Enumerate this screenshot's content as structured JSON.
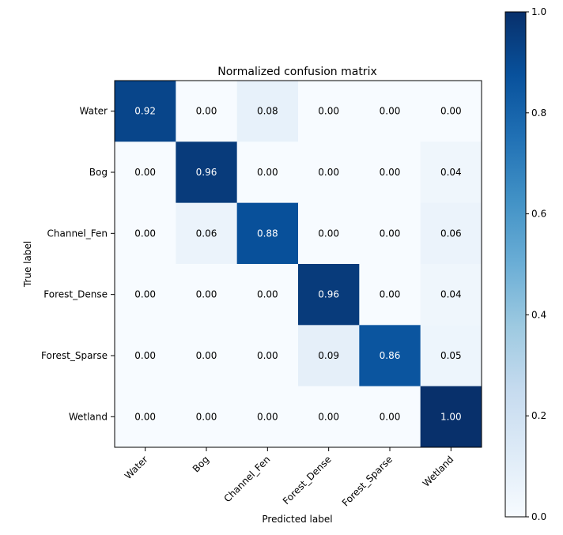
{
  "chart_data": {
    "type": "heatmap",
    "title": "Normalized confusion matrix",
    "xlabel": "Predicted label",
    "ylabel": "True label",
    "x_categories": [
      "Water",
      "Bog",
      "Channel_Fen",
      "Forest_Dense",
      "Forest_Sparse",
      "Wetland"
    ],
    "y_categories": [
      "Water",
      "Bog",
      "Channel_Fen",
      "Forest_Dense",
      "Forest_Sparse",
      "Wetland"
    ],
    "values": [
      [
        0.92,
        0.0,
        0.08,
        0.0,
        0.0,
        0.0
      ],
      [
        0.0,
        0.96,
        0.0,
        0.0,
        0.0,
        0.04
      ],
      [
        0.0,
        0.06,
        0.88,
        0.0,
        0.0,
        0.06
      ],
      [
        0.0,
        0.0,
        0.0,
        0.96,
        0.0,
        0.04
      ],
      [
        0.0,
        0.0,
        0.0,
        0.09,
        0.86,
        0.05
      ],
      [
        0.0,
        0.0,
        0.0,
        0.0,
        0.0,
        1.0
      ]
    ],
    "value_format": "0.00",
    "colormap": "Blues",
    "colorbar": {
      "range": [
        0.0,
        1.0
      ],
      "ticks": [
        0.0,
        0.2,
        0.4,
        0.6,
        0.8,
        1.0
      ],
      "tick_labels": [
        "0.0",
        "0.2",
        "0.4",
        "0.6",
        "0.8",
        "1.0"
      ]
    }
  }
}
